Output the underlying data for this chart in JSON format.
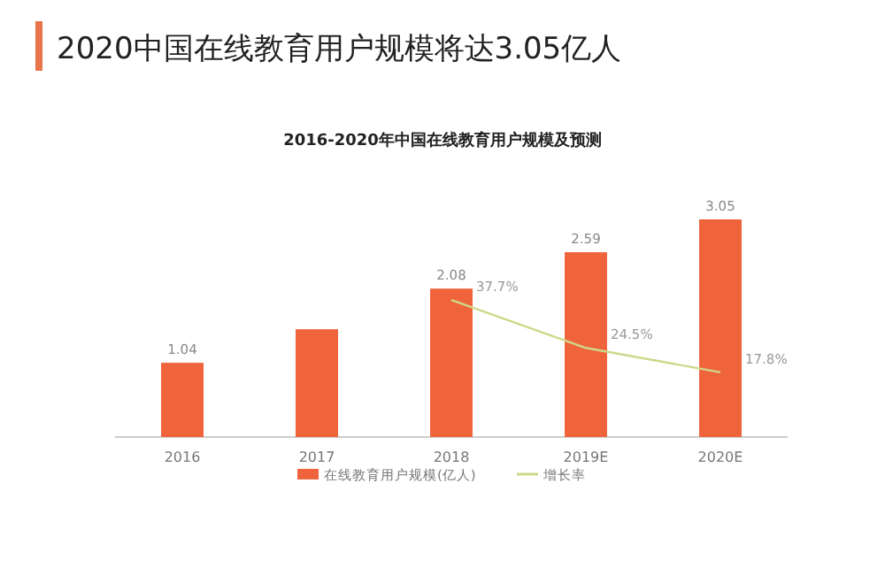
{
  "chart_data": {
    "type": "bar",
    "title": "2020中国在线教育用户规模将达3.05亿人",
    "subtitle": "2016-2020年中国在线教育用户规模及预测",
    "categories": [
      "2016",
      "2017",
      "2018",
      "2019E",
      "2020E"
    ],
    "series": [
      {
        "name": "在线教育用户规模(亿人)",
        "color": "#f0643c",
        "values": [
          1.04,
          1.51,
          2.08,
          2.59,
          3.05
        ],
        "value_labels": [
          "1.04",
          null,
          "2.08",
          "2.59",
          "3.05"
        ]
      },
      {
        "name": "增长率",
        "type": "line",
        "axis": "y2",
        "color": "#cfd88a",
        "values": [
          null,
          null,
          37.7,
          24.5,
          17.8
        ],
        "value_labels": [
          null,
          null,
          "37.7%",
          "24.5%",
          "17.8%"
        ]
      }
    ],
    "legend": "bottom",
    "marker": "none"
  }
}
